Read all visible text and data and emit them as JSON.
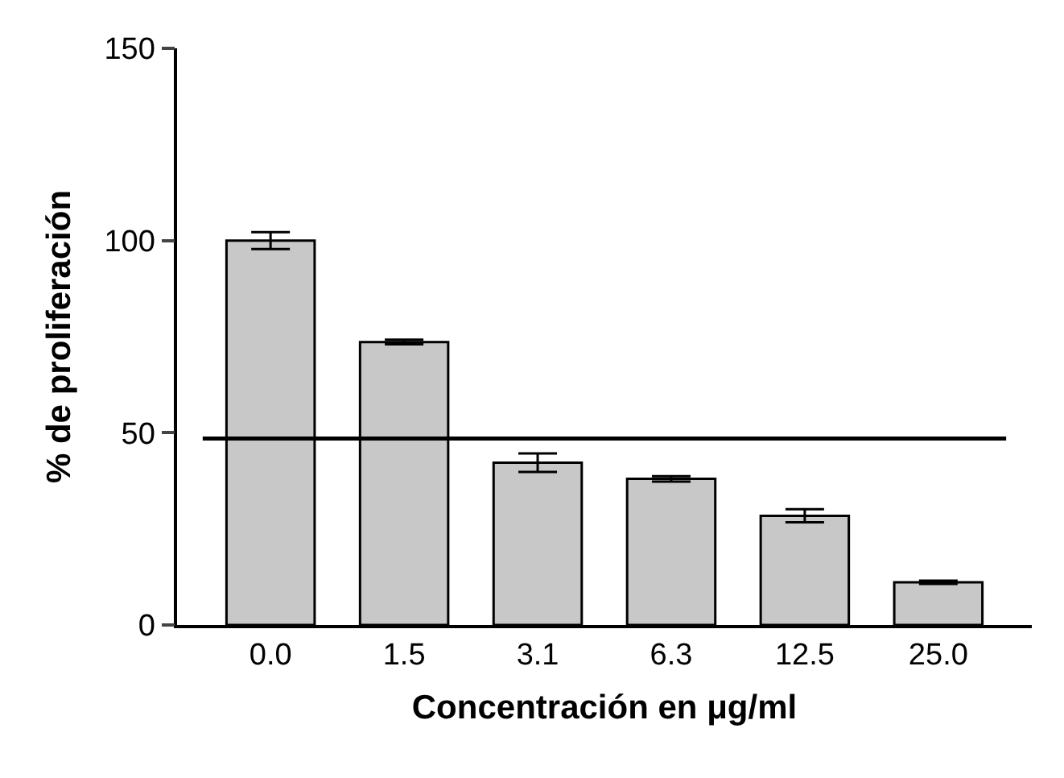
{
  "chart_data": {
    "type": "bar",
    "xlabel": "Concentración en μg/ml",
    "ylabel": "% de proliferación",
    "categories": [
      "0.0",
      "1.5",
      "3.1",
      "6.3",
      "12.5",
      "25.0"
    ],
    "values": [
      100,
      73.6,
      42.2,
      38.0,
      28.4,
      11.1
    ],
    "errors": [
      2.2,
      0.6,
      2.4,
      0.7,
      1.7,
      0.4
    ],
    "color": "#c8c8c8",
    "ylim": [
      0,
      150
    ],
    "yticks": [
      0,
      50,
      100,
      150
    ],
    "ref_lines": [
      {
        "axis": "y",
        "value": 48.5,
        "color": "#000000"
      }
    ]
  }
}
